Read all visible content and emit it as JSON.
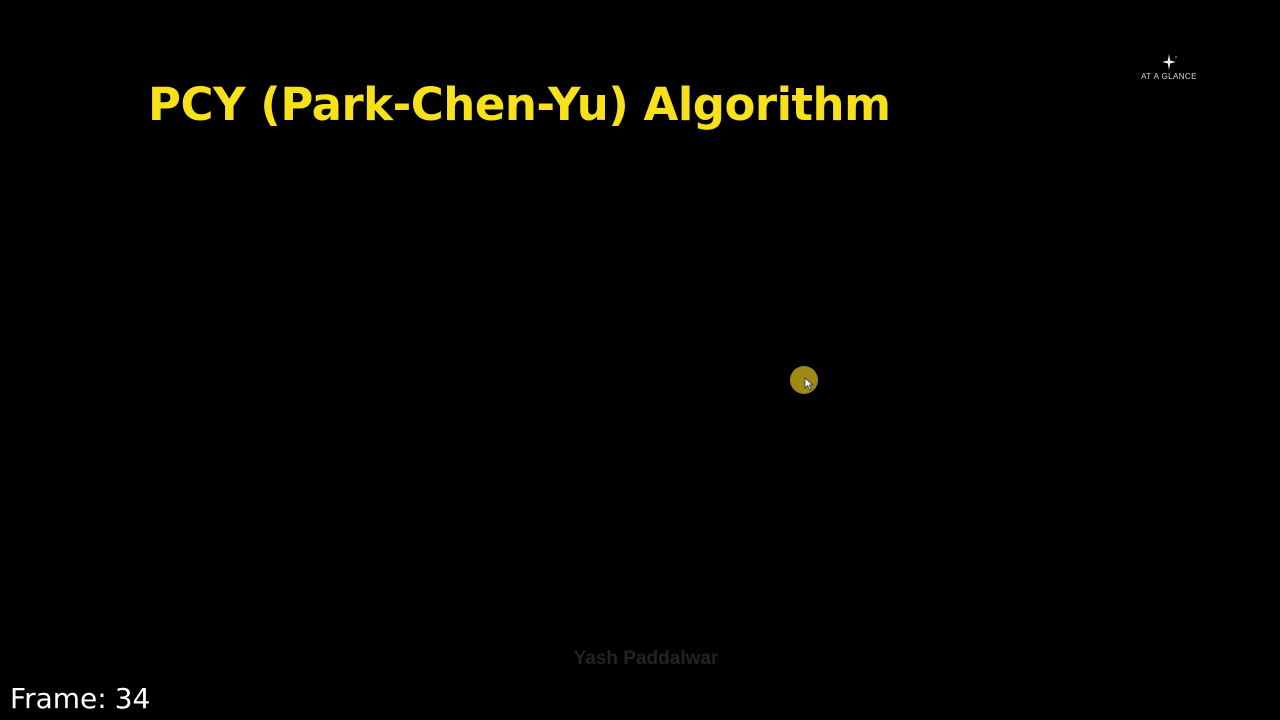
{
  "slide": {
    "title": "PCY (Park-Chen-Yu) Algorithm",
    "author": "Yash Paddalwar"
  },
  "brand": {
    "text": "AT A GLANCE",
    "icon": "sparkle-icon"
  },
  "cursor": {
    "icon": "cursor-arrow-icon",
    "highlight_color": "#b8a21a"
  },
  "frame": {
    "label": "Frame:",
    "number": "34"
  },
  "colors": {
    "background": "#000000",
    "title": "#f7e11b",
    "author": "#232323",
    "frame_text": "#ffffff"
  }
}
